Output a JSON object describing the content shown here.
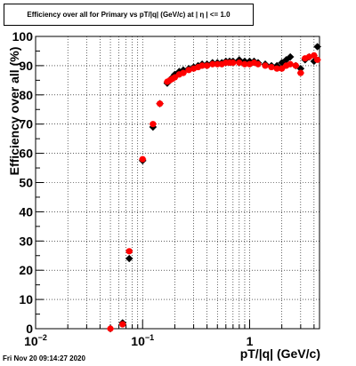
{
  "chart_data": {
    "type": "scatter",
    "title": "Efficiency over all for Primary vs pT/|q| (GeV/c) at | η | <= 1.0",
    "xlabel": "pT/|q| (GeV/c)",
    "ylabel": "Efficiency over all (%)",
    "x_scale": "log",
    "xlim": [
      0.01,
      4.5
    ],
    "ylim": [
      0,
      100
    ],
    "grid": true,
    "y_ticks": [
      "0",
      "10",
      "20",
      "30",
      "40",
      "50",
      "60",
      "70",
      "80",
      "90",
      "100"
    ],
    "x_ticks": [
      {
        "base": "10",
        "exp": "−2",
        "value": 0.01
      },
      {
        "base": "10",
        "exp": "−1",
        "value": 0.1
      },
      {
        "base": "1",
        "exp": "",
        "value": 1
      }
    ],
    "series": [
      {
        "marker": "diamond",
        "color": "#000000",
        "points": [
          [
            0.05,
            0
          ],
          [
            0.065,
            2
          ],
          [
            0.075,
            24
          ],
          [
            0.1,
            57.5
          ],
          [
            0.125,
            69
          ],
          [
            0.145,
            77
          ],
          [
            0.17,
            84
          ],
          [
            0.18,
            85
          ],
          [
            0.19,
            86
          ],
          [
            0.2,
            87
          ],
          [
            0.22,
            88
          ],
          [
            0.24,
            88.5
          ],
          [
            0.27,
            89
          ],
          [
            0.3,
            89.5
          ],
          [
            0.33,
            90
          ],
          [
            0.36,
            90.5
          ],
          [
            0.4,
            90.5
          ],
          [
            0.45,
            91
          ],
          [
            0.5,
            91
          ],
          [
            0.55,
            91
          ],
          [
            0.6,
            91.5
          ],
          [
            0.65,
            91.5
          ],
          [
            0.7,
            91.5
          ],
          [
            0.8,
            92
          ],
          [
            0.9,
            91.5
          ],
          [
            1.0,
            91.5
          ],
          [
            1.1,
            91.5
          ],
          [
            1.2,
            91
          ],
          [
            1.4,
            90.5
          ],
          [
            1.6,
            90
          ],
          [
            1.8,
            90
          ],
          [
            2.0,
            91
          ],
          [
            2.2,
            92
          ],
          [
            2.4,
            93
          ],
          [
            2.7,
            90
          ],
          [
            3.0,
            89
          ],
          [
            3.3,
            92
          ],
          [
            3.6,
            93
          ],
          [
            4.0,
            91.5
          ],
          [
            4.3,
            96.5
          ]
        ]
      },
      {
        "marker": "circle",
        "color": "#ff0000",
        "points": [
          [
            0.05,
            0
          ],
          [
            0.065,
            1.5
          ],
          [
            0.075,
            26.5
          ],
          [
            0.1,
            58
          ],
          [
            0.125,
            70
          ],
          [
            0.145,
            77
          ],
          [
            0.17,
            84.5
          ],
          [
            0.18,
            85
          ],
          [
            0.19,
            85.5
          ],
          [
            0.2,
            86
          ],
          [
            0.22,
            87
          ],
          [
            0.24,
            87.5
          ],
          [
            0.27,
            88.5
          ],
          [
            0.3,
            89
          ],
          [
            0.33,
            89.5
          ],
          [
            0.36,
            90
          ],
          [
            0.4,
            90
          ],
          [
            0.45,
            90.5
          ],
          [
            0.5,
            90.5
          ],
          [
            0.55,
            90.5
          ],
          [
            0.6,
            91
          ],
          [
            0.65,
            91
          ],
          [
            0.7,
            91
          ],
          [
            0.8,
            91
          ],
          [
            0.9,
            90.5
          ],
          [
            1.0,
            90.5
          ],
          [
            1.1,
            91
          ],
          [
            1.2,
            90.5
          ],
          [
            1.4,
            90
          ],
          [
            1.6,
            89.5
          ],
          [
            1.8,
            89
          ],
          [
            2.0,
            89
          ],
          [
            2.2,
            90
          ],
          [
            2.4,
            90.5
          ],
          [
            2.7,
            90
          ],
          [
            3.0,
            87.5
          ],
          [
            3.3,
            92.5
          ],
          [
            3.6,
            93
          ],
          [
            4.0,
            93.5
          ],
          [
            4.3,
            92
          ]
        ]
      }
    ]
  },
  "footer_text": "Fri Nov 20 09:14:27 2020"
}
